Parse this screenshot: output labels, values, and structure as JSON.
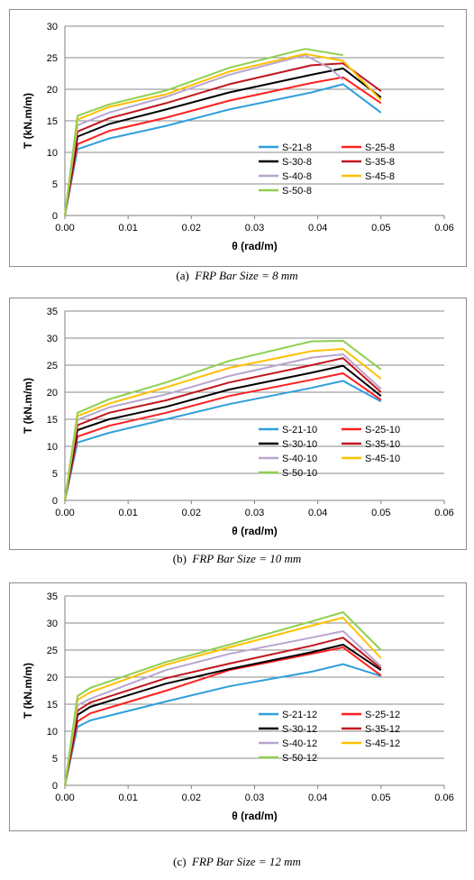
{
  "figures": [
    {
      "caption_letter": "(a)",
      "caption_text": "FRP Bar Size = 8 mm",
      "chart_data": {
        "type": "line",
        "xlabel": "θ (rad/m)",
        "ylabel": "T (kN.m/m)",
        "xlim": [
          0,
          0.06
        ],
        "ylim": [
          0,
          30
        ],
        "xticks": [
          "0.00",
          "0.01",
          "0.02",
          "0.03",
          "0.04",
          "0.05",
          "0.06"
        ],
        "yticks": [
          "0",
          "5",
          "10",
          "15",
          "20",
          "25",
          "30"
        ],
        "legend_position": "lower-right",
        "grid": "horizontal",
        "series": [
          {
            "name": "S-21-8",
            "color": "#2e9fdb",
            "points": [
              [
                0,
                0
              ],
              [
                0.002,
                10.5
              ],
              [
                0.007,
                12.2
              ],
              [
                0.016,
                14.2
              ],
              [
                0.026,
                16.8
              ],
              [
                0.039,
                19.5
              ],
              [
                0.044,
                20.8
              ],
              [
                0.05,
                16.3
              ]
            ]
          },
          {
            "name": "S-25-8",
            "color": "#ff1f1f",
            "points": [
              [
                0,
                0
              ],
              [
                0.002,
                11.3
              ],
              [
                0.007,
                13.4
              ],
              [
                0.016,
                15.5
              ],
              [
                0.026,
                18.2
              ],
              [
                0.039,
                21.0
              ],
              [
                0.044,
                21.9
              ],
              [
                0.05,
                17.8
              ]
            ]
          },
          {
            "name": "S-30-8",
            "color": "#000000",
            "points": [
              [
                0,
                0
              ],
              [
                0.002,
                12.5
              ],
              [
                0.007,
                14.5
              ],
              [
                0.016,
                16.8
              ],
              [
                0.026,
                19.5
              ],
              [
                0.039,
                22.3
              ],
              [
                0.044,
                23.3
              ],
              [
                0.05,
                18.7
              ]
            ]
          },
          {
            "name": "S-35-8",
            "color": "#c0171c",
            "points": [
              [
                0,
                0
              ],
              [
                0.002,
                13.3
              ],
              [
                0.007,
                15.4
              ],
              [
                0.016,
                17.8
              ],
              [
                0.026,
                20.8
              ],
              [
                0.039,
                23.8
              ],
              [
                0.044,
                24.1
              ],
              [
                0.05,
                19.7
              ]
            ]
          },
          {
            "name": "S-40-8",
            "color": "#b8a5cf",
            "points": [
              [
                0,
                0
              ],
              [
                0.002,
                14.3
              ],
              [
                0.007,
                16.3
              ],
              [
                0.016,
                18.8
              ],
              [
                0.026,
                22.3
              ],
              [
                0.038,
                25.4
              ],
              [
                0.042,
                23.3
              ],
              [
                0.044,
                21.5
              ]
            ]
          },
          {
            "name": "S-45-8",
            "color": "#ffc000",
            "points": [
              [
                0,
                0
              ],
              [
                0.002,
                15.2
              ],
              [
                0.007,
                17.2
              ],
              [
                0.016,
                19.2
              ],
              [
                0.026,
                22.8
              ],
              [
                0.038,
                25.6
              ],
              [
                0.044,
                24.5
              ],
              [
                0.05,
                18.3
              ]
            ]
          },
          {
            "name": "S-50-8",
            "color": "#8ed04e",
            "points": [
              [
                0,
                0
              ],
              [
                0.002,
                15.8
              ],
              [
                0.007,
                17.6
              ],
              [
                0.016,
                19.8
              ],
              [
                0.026,
                23.4
              ],
              [
                0.038,
                26.4
              ],
              [
                0.044,
                25.4
              ]
            ]
          }
        ]
      }
    },
    {
      "caption_letter": "(b)",
      "caption_text": "FRP Bar Size = 10 mm",
      "chart_data": {
        "type": "line",
        "xlabel": "θ (rad/m)",
        "ylabel": "T (kN.m/m)",
        "xlim": [
          0,
          0.06
        ],
        "ylim": [
          0,
          35
        ],
        "xticks": [
          "0.00",
          "0.01",
          "0.02",
          "0.03",
          "0.04",
          "0.05",
          "0.06"
        ],
        "yticks": [
          "0",
          "5",
          "10",
          "15",
          "20",
          "25",
          "30",
          "35"
        ],
        "legend_position": "lower-right",
        "grid": "horizontal",
        "series": [
          {
            "name": "S-21-10",
            "color": "#2e9fdb",
            "points": [
              [
                0,
                0
              ],
              [
                0.002,
                10.7
              ],
              [
                0.007,
                12.5
              ],
              [
                0.016,
                15.0
              ],
              [
                0.026,
                17.8
              ],
              [
                0.039,
                20.8
              ],
              [
                0.044,
                22.1
              ],
              [
                0.05,
                18.3
              ]
            ]
          },
          {
            "name": "S-25-10",
            "color": "#ff1f1f",
            "points": [
              [
                0,
                0
              ],
              [
                0.002,
                11.8
              ],
              [
                0.007,
                13.8
              ],
              [
                0.016,
                16.2
              ],
              [
                0.026,
                19.3
              ],
              [
                0.039,
                22.3
              ],
              [
                0.044,
                23.5
              ],
              [
                0.05,
                18.6
              ]
            ]
          },
          {
            "name": "S-30-10",
            "color": "#000000",
            "points": [
              [
                0,
                0
              ],
              [
                0.002,
                13.0
              ],
              [
                0.007,
                15.0
              ],
              [
                0.016,
                17.3
              ],
              [
                0.026,
                20.5
              ],
              [
                0.039,
                23.6
              ],
              [
                0.044,
                24.9
              ],
              [
                0.05,
                19.3
              ]
            ]
          },
          {
            "name": "S-35-10",
            "color": "#c0171c",
            "points": [
              [
                0,
                0
              ],
              [
                0.002,
                13.9
              ],
              [
                0.007,
                16.2
              ],
              [
                0.016,
                18.5
              ],
              [
                0.026,
                21.8
              ],
              [
                0.039,
                25.0
              ],
              [
                0.044,
                26.3
              ],
              [
                0.05,
                20.0
              ]
            ]
          },
          {
            "name": "S-40-10",
            "color": "#b8a5cf",
            "points": [
              [
                0,
                0
              ],
              [
                0.002,
                14.9
              ],
              [
                0.007,
                17.2
              ],
              [
                0.016,
                19.6
              ],
              [
                0.026,
                23.0
              ],
              [
                0.039,
                26.4
              ],
              [
                0.044,
                27.0
              ],
              [
                0.05,
                20.6
              ]
            ]
          },
          {
            "name": "S-45-10",
            "color": "#ffc000",
            "points": [
              [
                0,
                0
              ],
              [
                0.002,
                15.6
              ],
              [
                0.007,
                17.9
              ],
              [
                0.016,
                20.9
              ],
              [
                0.026,
                24.5
              ],
              [
                0.039,
                27.6
              ],
              [
                0.044,
                28.0
              ],
              [
                0.05,
                22.5
              ]
            ]
          },
          {
            "name": "S-50-10",
            "color": "#8ed04e",
            "points": [
              [
                0,
                0
              ],
              [
                0.002,
                16.2
              ],
              [
                0.007,
                18.7
              ],
              [
                0.016,
                21.8
              ],
              [
                0.026,
                25.8
              ],
              [
                0.039,
                29.4
              ],
              [
                0.044,
                29.5
              ],
              [
                0.05,
                24.2
              ]
            ]
          }
        ]
      }
    },
    {
      "caption_letter": "(c)",
      "caption_text": "FRP Bar Size = 12 mm",
      "chart_data": {
        "type": "line",
        "xlabel": "θ (rad/m)",
        "ylabel": "T (kN.m/m)",
        "xlim": [
          0,
          0.06
        ],
        "ylim": [
          0,
          35
        ],
        "xticks": [
          "0.00",
          "0.01",
          "0.02",
          "0.03",
          "0.04",
          "0.05",
          "0.06"
        ],
        "yticks": [
          "0",
          "5",
          "10",
          "15",
          "20",
          "25",
          "30",
          "35"
        ],
        "legend_position": "lower-right",
        "grid": "horizontal",
        "series": [
          {
            "name": "S-21-12",
            "color": "#2e9fdb",
            "points": [
              [
                0,
                0
              ],
              [
                0.002,
                10.8
              ],
              [
                0.004,
                12.0
              ],
              [
                0.016,
                15.5
              ],
              [
                0.026,
                18.3
              ],
              [
                0.039,
                21.0
              ],
              [
                0.044,
                22.4
              ],
              [
                0.05,
                20.2
              ]
            ]
          },
          {
            "name": "S-25-12",
            "color": "#ff1f1f",
            "points": [
              [
                0,
                0
              ],
              [
                0.002,
                11.8
              ],
              [
                0.004,
                13.3
              ],
              [
                0.016,
                17.5
              ],
              [
                0.026,
                21.3
              ],
              [
                0.039,
                24.3
              ],
              [
                0.044,
                25.5
              ],
              [
                0.05,
                20.3
              ]
            ]
          },
          {
            "name": "S-30-12",
            "color": "#000000",
            "points": [
              [
                0,
                0
              ],
              [
                0.002,
                13.0
              ],
              [
                0.004,
                14.5
              ],
              [
                0.016,
                18.8
              ],
              [
                0.026,
                21.5
              ],
              [
                0.039,
                24.6
              ],
              [
                0.044,
                26.0
              ],
              [
                0.05,
                21.3
              ]
            ]
          },
          {
            "name": "S-35-12",
            "color": "#c0171c",
            "points": [
              [
                0,
                0
              ],
              [
                0.002,
                13.8
              ],
              [
                0.004,
                15.3
              ],
              [
                0.016,
                19.8
              ],
              [
                0.026,
                22.5
              ],
              [
                0.039,
                25.8
              ],
              [
                0.044,
                27.3
              ],
              [
                0.05,
                21.6
              ]
            ]
          },
          {
            "name": "S-40-12",
            "color": "#b8a5cf",
            "points": [
              [
                0,
                0
              ],
              [
                0.002,
                14.8
              ],
              [
                0.004,
                16.0
              ],
              [
                0.016,
                21.3
              ],
              [
                0.026,
                24.3
              ],
              [
                0.039,
                27.3
              ],
              [
                0.044,
                28.5
              ],
              [
                0.05,
                22.0
              ]
            ]
          },
          {
            "name": "S-45-12",
            "color": "#ffc000",
            "points": [
              [
                0,
                0
              ],
              [
                0.002,
                15.8
              ],
              [
                0.004,
                17.2
              ],
              [
                0.016,
                22.3
              ],
              [
                0.026,
                25.5
              ],
              [
                0.039,
                29.5
              ],
              [
                0.044,
                31.0
              ],
              [
                0.05,
                23.5
              ]
            ]
          },
          {
            "name": "S-50-12",
            "color": "#8ed04e",
            "points": [
              [
                0,
                0
              ],
              [
                0.002,
                16.5
              ],
              [
                0.004,
                18.0
              ],
              [
                0.016,
                22.8
              ],
              [
                0.026,
                26.0
              ],
              [
                0.039,
                30.3
              ],
              [
                0.044,
                32.0
              ],
              [
                0.05,
                25.0
              ]
            ]
          }
        ]
      }
    }
  ]
}
